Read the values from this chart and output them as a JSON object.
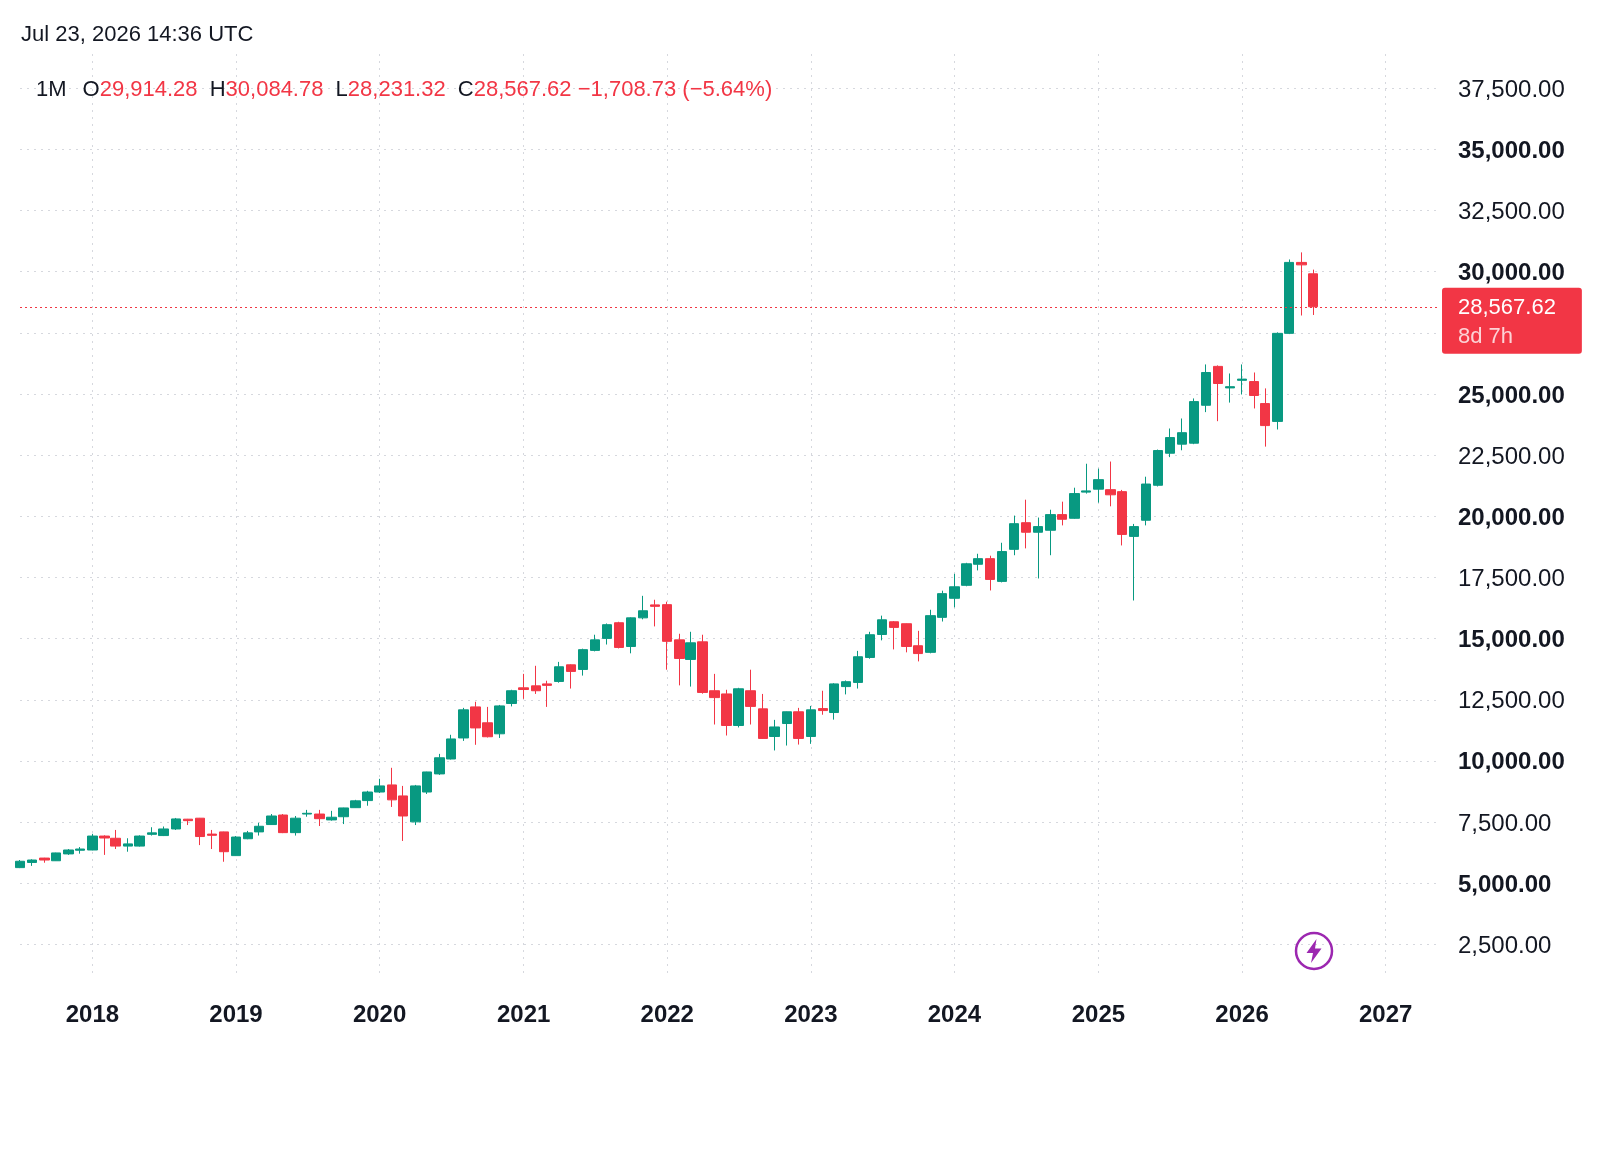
{
  "chart_data": {
    "type": "candlestick",
    "title": "1M",
    "subtitle": "O29,914.28 H30,084.78 L28,231.32 C28,567.62 −1,708.73 (−5.64%)",
    "annotations": [
      "Jul 23, 2026 14:36 UTC",
      "8d 7h"
    ],
    "x": [
      "2017-07",
      "2017-08",
      "2017-09",
      "2017-10",
      "2017-11",
      "2017-12",
      "2018-01",
      "2018-02",
      "2018-03",
      "2018-04",
      "2018-05",
      "2018-06",
      "2018-07",
      "2018-08",
      "2018-09",
      "2018-10",
      "2018-11",
      "2018-12",
      "2019-01",
      "2019-02",
      "2019-03",
      "2019-04",
      "2019-05",
      "2019-06",
      "2019-07",
      "2019-08",
      "2019-09",
      "2019-10",
      "2019-11",
      "2019-12",
      "2020-01",
      "2020-02",
      "2020-03",
      "2020-04",
      "2020-05",
      "2020-06",
      "2020-07",
      "2020-08",
      "2020-09",
      "2020-10",
      "2020-11",
      "2020-12",
      "2021-01",
      "2021-02",
      "2021-03",
      "2021-04",
      "2021-05",
      "2021-06",
      "2021-07",
      "2021-08",
      "2021-09",
      "2021-10",
      "2021-11",
      "2021-12",
      "2022-01",
      "2022-02",
      "2022-03",
      "2022-04",
      "2022-05",
      "2022-06",
      "2022-07",
      "2022-08",
      "2022-09",
      "2022-10",
      "2022-11",
      "2022-12",
      "2023-01",
      "2023-02",
      "2023-03",
      "2023-04",
      "2023-05",
      "2023-06",
      "2023-07",
      "2023-08",
      "2023-09",
      "2023-10",
      "2023-11",
      "2023-12",
      "2024-01",
      "2024-02",
      "2024-03",
      "2024-04",
      "2024-05",
      "2024-06",
      "2024-07",
      "2024-08",
      "2024-09",
      "2024-10",
      "2024-11",
      "2024-12",
      "2025-01",
      "2025-02",
      "2025-03",
      "2025-04",
      "2025-05",
      "2025-06",
      "2025-07",
      "2025-08",
      "2025-09",
      "2025-10",
      "2025-11",
      "2025-12",
      "2026-01",
      "2026-02",
      "2026-03",
      "2026-04",
      "2026-05",
      "2026-06",
      "2026-07"
    ],
    "ohlc": [
      [
        5640,
        5950,
        5620,
        5900
      ],
      [
        5850,
        5980,
        5710,
        5950
      ],
      [
        6030,
        6040,
        5840,
        5950
      ],
      [
        5920,
        6250,
        5910,
        6240
      ],
      [
        6200,
        6400,
        6160,
        6360
      ],
      [
        6350,
        6480,
        6210,
        6400
      ],
      [
        6360,
        7020,
        6350,
        6930
      ],
      [
        6930,
        6960,
        6160,
        6850
      ],
      [
        6840,
        7180,
        6400,
        6520
      ],
      [
        6520,
        6840,
        6290,
        6610
      ],
      [
        6520,
        6960,
        6500,
        6930
      ],
      [
        7000,
        7290,
        6950,
        7060
      ],
      [
        6950,
        7320,
        6930,
        7220
      ],
      [
        7220,
        7670,
        7180,
        7630
      ],
      [
        7620,
        7630,
        7380,
        7560
      ],
      [
        7660,
        7670,
        6560,
        6910
      ],
      [
        7010,
        7180,
        6400,
        6960
      ],
      [
        7100,
        7110,
        5880,
        6290
      ],
      [
        6130,
        6930,
        6120,
        6890
      ],
      [
        6820,
        7140,
        6800,
        7060
      ],
      [
        7100,
        7470,
        6950,
        7330
      ],
      [
        7400,
        7830,
        7390,
        7750
      ],
      [
        7790,
        7830,
        7050,
        7070
      ],
      [
        7070,
        7750,
        6950,
        7660
      ],
      [
        7830,
        8000,
        7720,
        7860
      ],
      [
        7830,
        8000,
        7340,
        7640
      ],
      [
        7590,
        7960,
        7560,
        7700
      ],
      [
        7720,
        8090,
        7420,
        8080
      ],
      [
        8090,
        8410,
        8080,
        8370
      ],
      [
        8380,
        8780,
        8170,
        8730
      ],
      [
        8730,
        9270,
        8690,
        8980
      ],
      [
        9020,
        9720,
        8120,
        8410
      ],
      [
        8570,
        8980,
        6730,
        7750
      ],
      [
        7510,
        9020,
        7380,
        8980
      ],
      [
        8730,
        9560,
        8650,
        9550
      ],
      [
        9470,
        10290,
        9430,
        10130
      ],
      [
        10080,
        11070,
        10060,
        10900
      ],
      [
        10940,
        12170,
        10820,
        12090
      ],
      [
        12210,
        12420,
        10660,
        11350
      ],
      [
        11560,
        12210,
        10960,
        10990
      ],
      [
        11110,
        12290,
        10940,
        12250
      ],
      [
        12350,
        12910,
        12230,
        12870
      ],
      [
        12990,
        13560,
        12540,
        12920
      ],
      [
        13070,
        13890,
        12740,
        12870
      ],
      [
        13150,
        13280,
        12210,
        13090
      ],
      [
        13250,
        14050,
        13200,
        13850
      ],
      [
        13930,
        13950,
        12960,
        13660
      ],
      [
        13740,
        14590,
        13490,
        14550
      ],
      [
        14520,
        15160,
        14480,
        14950
      ],
      [
        15010,
        15620,
        14760,
        15570
      ],
      [
        15650,
        15690,
        14600,
        14640
      ],
      [
        14680,
        15870,
        14400,
        15850
      ],
      [
        15850,
        16750,
        15790,
        16140
      ],
      [
        16380,
        16590,
        15500,
        16320
      ],
      [
        16390,
        16510,
        13730,
        14890
      ],
      [
        14950,
        15200,
        13090,
        14190
      ],
      [
        14150,
        15280,
        13040,
        14830
      ],
      [
        14870,
        15160,
        12750,
        12800
      ],
      [
        12870,
        13560,
        11490,
        12590
      ],
      [
        12740,
        12910,
        11040,
        11450
      ],
      [
        11450,
        12990,
        11370,
        12950
      ],
      [
        12870,
        13730,
        11490,
        12230
      ],
      [
        12130,
        12740,
        10900,
        10920
      ],
      [
        11000,
        11680,
        10430,
        11390
      ],
      [
        11530,
        12020,
        10630,
        12010
      ],
      [
        12010,
        12170,
        10670,
        10920
      ],
      [
        11000,
        12250,
        10700,
        12090
      ],
      [
        12140,
        12870,
        11890,
        12060
      ],
      [
        11980,
        13180,
        11690,
        13150
      ],
      [
        13040,
        13290,
        12720,
        13240
      ],
      [
        13210,
        14500,
        12960,
        14260
      ],
      [
        14230,
        15280,
        14180,
        15160
      ],
      [
        15170,
        15940,
        14930,
        15770
      ],
      [
        15690,
        15720,
        14560,
        15460
      ],
      [
        15610,
        15620,
        14440,
        14680
      ],
      [
        14710,
        15320,
        14070,
        14390
      ],
      [
        14440,
        16180,
        14400,
        15940
      ],
      [
        15870,
        16960,
        15700,
        16840
      ],
      [
        16650,
        17650,
        16280,
        17120
      ],
      [
        17180,
        18100,
        17140,
        18060
      ],
      [
        18040,
        18470,
        17790,
        18270
      ],
      [
        18270,
        18390,
        16970,
        17420
      ],
      [
        17340,
        18920,
        17300,
        18560
      ],
      [
        18650,
        20030,
        18410,
        19700
      ],
      [
        19740,
        20680,
        18690,
        19350
      ],
      [
        19350,
        19950,
        17460,
        19580
      ],
      [
        19430,
        20270,
        18410,
        20070
      ],
      [
        20070,
        20600,
        19630,
        19880
      ],
      [
        19920,
        21170,
        19900,
        20930
      ],
      [
        20990,
        22150,
        20930,
        21040
      ],
      [
        21110,
        21950,
        20560,
        21500
      ],
      [
        21090,
        22240,
        20410,
        20880
      ],
      [
        21010,
        21080,
        18810,
        19260
      ],
      [
        19180,
        19690,
        16560,
        19580
      ],
      [
        19840,
        21620,
        19630,
        21320
      ],
      [
        21270,
        22730,
        21220,
        22690
      ],
      [
        22580,
        23590,
        22420,
        23220
      ],
      [
        22950,
        24000,
        22700,
        23420
      ],
      [
        22990,
        24820,
        22950,
        24690
      ],
      [
        24540,
        26210,
        24260,
        25880
      ],
      [
        26130,
        26170,
        23890,
        25430
      ],
      [
        25250,
        25840,
        24650,
        25300
      ],
      [
        25560,
        26210,
        24980,
        25610
      ],
      [
        25510,
        25880,
        24410,
        24940
      ],
      [
        24610,
        25230,
        22850,
        23710
      ],
      [
        23880,
        27520,
        23550,
        27480
      ],
      [
        27480,
        30500,
        27450,
        30380
      ],
      [
        30380,
        30790,
        28210,
        30280
      ],
      [
        29914.28,
        30084.78,
        28231.32,
        28567.62
      ]
    ],
    "colors": [
      "#089981",
      "#089981",
      "#f23645",
      "#089981",
      "#089981",
      "#089981",
      "#089981",
      "#f23645",
      "#f23645",
      "#089981",
      "#089981",
      "#089981",
      "#089981",
      "#089981",
      "#f23645",
      "#f23645",
      "#f23645",
      "#f23645",
      "#089981",
      "#089981",
      "#089981",
      "#089981",
      "#f23645",
      "#089981",
      "#089981",
      "#f23645",
      "#089981",
      "#089981",
      "#089981",
      "#089981",
      "#089981",
      "#f23645",
      "#f23645",
      "#089981",
      "#089981",
      "#089981",
      "#089981",
      "#089981",
      "#f23645",
      "#f23645",
      "#089981",
      "#089981",
      "#f23645",
      "#f23645",
      "#f23645",
      "#089981",
      "#f23645",
      "#089981",
      "#089981",
      "#089981",
      "#f23645",
      "#089981",
      "#089981",
      "#f23645",
      "#f23645",
      "#f23645",
      "#089981",
      "#f23645",
      "#f23645",
      "#f23645",
      "#089981",
      "#f23645",
      "#f23645",
      "#089981",
      "#089981",
      "#f23645",
      "#089981",
      "#f23645",
      "#089981",
      "#089981",
      "#089981",
      "#089981",
      "#089981",
      "#f23645",
      "#f23645",
      "#f23645",
      "#089981",
      "#089981",
      "#089981",
      "#089981",
      "#089981",
      "#f23645",
      "#089981",
      "#089981",
      "#f23645",
      "#089981",
      "#089981",
      "#f23645",
      "#089981",
      "#089981",
      "#089981",
      "#f23645",
      "#f23645",
      "#089981",
      "#089981",
      "#089981",
      "#089981",
      "#089981",
      "#089981",
      "#089981",
      "#f23645",
      "#089981",
      "#089981",
      "#f23645",
      "#f23645",
      "#089981",
      "#089981",
      "#f23645",
      "#f23645"
    ],
    "xlim": [
      "2017-07-01",
      "2027-05-14"
    ],
    "xticks": [
      "2018",
      "2019",
      "2020",
      "2021",
      "2022",
      "2023",
      "2024",
      "2025",
      "2026",
      "2027"
    ],
    "ylim": [
      1250,
      38900
    ],
    "yticks": [
      {
        "value": 2500,
        "label": "2,500.00"
      },
      {
        "value": 5000,
        "label": "5,000.00"
      },
      {
        "value": 7500,
        "label": "7,500.00"
      },
      {
        "value": 10000,
        "label": "10,000.00"
      },
      {
        "value": 12500,
        "label": "12,500.00"
      },
      {
        "value": 15000,
        "label": "15,000.00"
      },
      {
        "value": 17500,
        "label": "17,500.00"
      },
      {
        "value": 20000,
        "label": "20,000.00"
      },
      {
        "value": 22500,
        "label": "22,500.00"
      },
      {
        "value": 25000,
        "label": "25,000.00"
      },
      {
        "value": 27500,
        "label": null
      },
      {
        "value": 30000,
        "label": "30,000.00"
      },
      {
        "value": 32500,
        "label": "32,500.00"
      },
      {
        "value": 35000,
        "label": "35,000.00"
      },
      {
        "value": 37500,
        "label": "37,500.00"
      }
    ],
    "grid": true,
    "ref_lines": [
      {
        "axis": "y",
        "value": 28567.62,
        "label": "28,567.62",
        "color": "#f23645",
        "line_style": "dotted"
      }
    ]
  }
}
